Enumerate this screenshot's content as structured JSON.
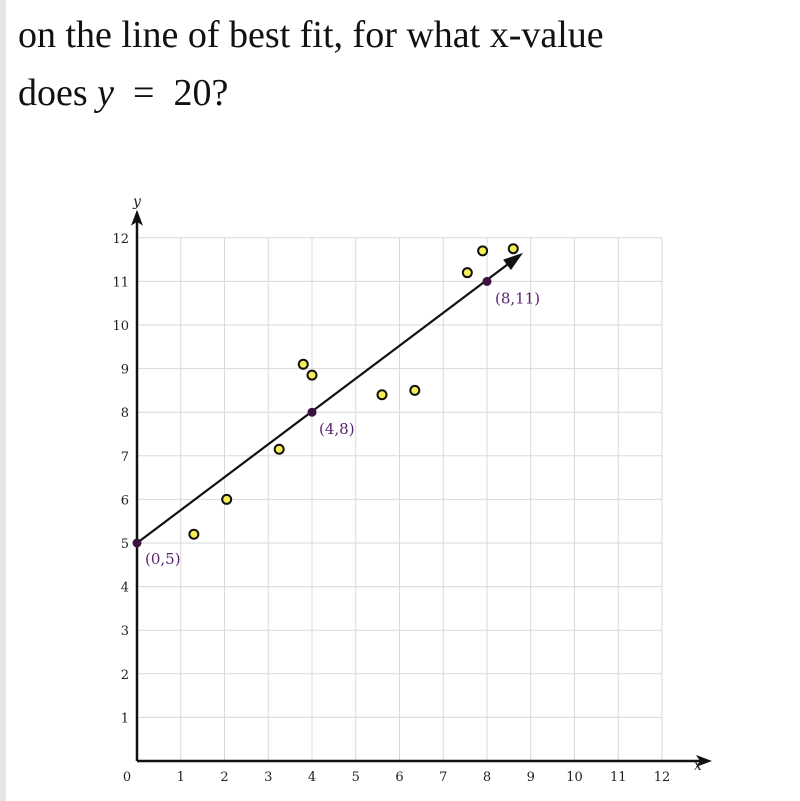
{
  "question": {
    "line1": "on the line of best fit, for what x-value",
    "line2_prefix": "does ",
    "variable": "y",
    "equals": "=",
    "value": "20",
    "suffix": "?"
  },
  "chart_data": {
    "type": "scatter",
    "xlabel": "x",
    "ylabel": "y",
    "xlim": [
      0,
      12
    ],
    "ylim": [
      0,
      12
    ],
    "grid": true,
    "x_ticks": [
      "0",
      "1",
      "2",
      "3",
      "4",
      "5",
      "6",
      "7",
      "8",
      "9",
      "10",
      "11",
      "12"
    ],
    "y_ticks": [
      "1",
      "2",
      "3",
      "4",
      "5",
      "6",
      "7",
      "8",
      "9",
      "10",
      "11",
      "12"
    ],
    "scatter_points": [
      {
        "x": 1.3,
        "y": 5.2
      },
      {
        "x": 2.05,
        "y": 6.0
      },
      {
        "x": 3.25,
        "y": 7.15
      },
      {
        "x": 3.8,
        "y": 9.1
      },
      {
        "x": 4.0,
        "y": 8.85
      },
      {
        "x": 5.6,
        "y": 8.4
      },
      {
        "x": 6.35,
        "y": 8.5
      },
      {
        "x": 7.55,
        "y": 11.2
      },
      {
        "x": 7.9,
        "y": 11.7
      },
      {
        "x": 8.6,
        "y": 11.75
      }
    ],
    "best_fit_line": {
      "x0": 0,
      "y0": 5,
      "x1": 8.75,
      "y1": 11.6
    },
    "labeled_points": [
      {
        "x": 0,
        "y": 5,
        "label": "(0,5)"
      },
      {
        "x": 4,
        "y": 8,
        "label": "(4,8)"
      },
      {
        "x": 8,
        "y": 11,
        "label": "(8,11)"
      }
    ],
    "colors": {
      "point_fill": "#f7ee55",
      "point_stroke": "#111111",
      "labeled_point": "#3b1240",
      "label_text": "#5a1f6e",
      "grid": "#d9d9d9",
      "axis": "#111111"
    }
  }
}
